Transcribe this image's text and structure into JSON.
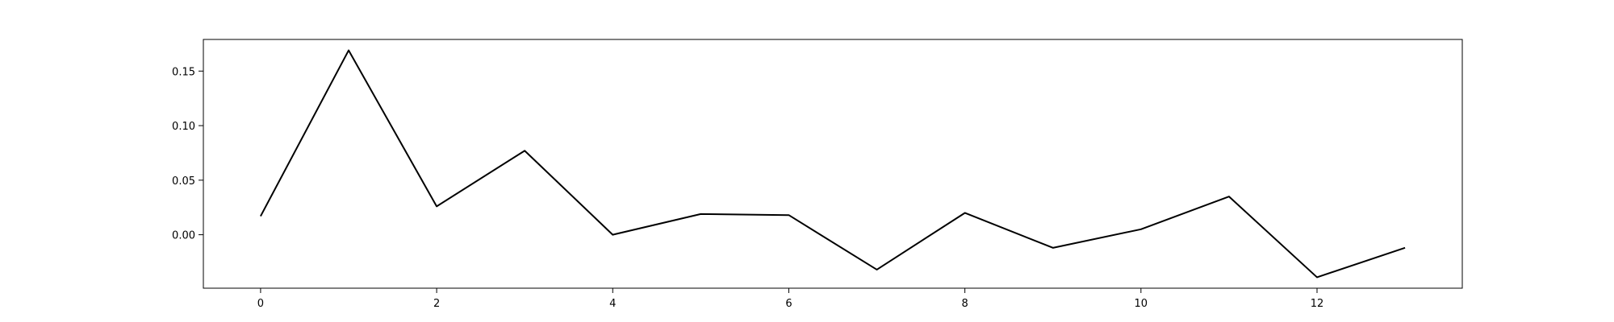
{
  "chart_data": {
    "type": "line",
    "title": "",
    "xlabel": "",
    "ylabel": "",
    "x": [
      0,
      1,
      2,
      3,
      4,
      5,
      6,
      7,
      8,
      9,
      10,
      11,
      12,
      13
    ],
    "series": [
      {
        "values": [
          0.017,
          0.169,
          0.026,
          0.077,
          0.0,
          0.019,
          0.018,
          -0.032,
          0.02,
          -0.012,
          0.005,
          0.035,
          -0.039,
          -0.012
        ],
        "color": "#000000"
      }
    ],
    "xlim": [
      -0.65,
      13.65
    ],
    "ylim": [
      -0.049,
      0.179
    ],
    "xticks": [
      0,
      2,
      4,
      6,
      8,
      10,
      12
    ],
    "xtick_labels": [
      "0",
      "2",
      "4",
      "6",
      "8",
      "10",
      "12"
    ],
    "yticks": [
      0.0,
      0.05,
      0.1,
      0.15
    ],
    "ytick_labels": [
      "0.00",
      "0.05",
      "0.10",
      "0.15"
    ],
    "grid": false,
    "legend": false
  }
}
